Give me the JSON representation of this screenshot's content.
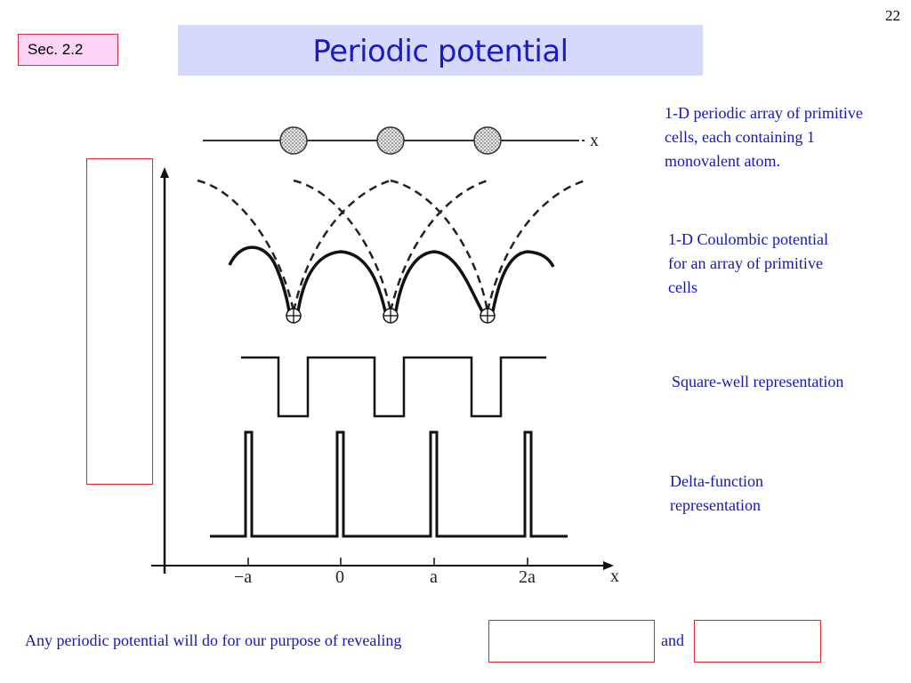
{
  "slide": {
    "number": "22"
  },
  "section_badge": "Sec. 2.2",
  "title": "Periodic potential",
  "captions": {
    "atom_array": "1-D periodic array of primitive cells, each containing 1 monovalent atom.",
    "coulombic": "1-D Coulombic potential for an array of  primitive cells",
    "square_well": "Square-well representation",
    "delta_function": "Delta-function representation"
  },
  "diagram": {
    "top_axis_label": "x",
    "bottom_axis_label": "x",
    "tick_labels": [
      "−a",
      "0",
      "a",
      "2a"
    ],
    "ion_symbol": "⊕"
  },
  "bottom": {
    "sentence": "Any periodic potential will do for our purpose of  revealing",
    "conjunction": "and"
  },
  "colors": {
    "caption_blue": "#1616b8",
    "title_blue": "#1b1bc2",
    "title_bar": "#d7d9fb",
    "badge_fill": "#fbd3f7",
    "blank_border": "#e0262c"
  }
}
